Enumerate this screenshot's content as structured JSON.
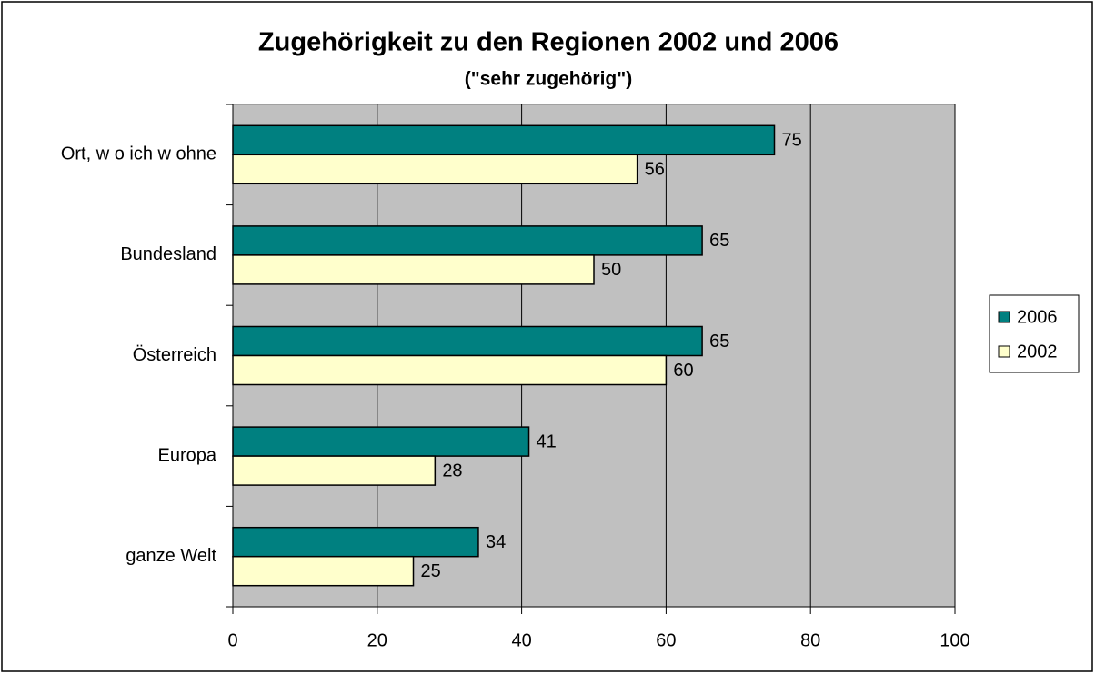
{
  "chart_data": {
    "type": "hbar",
    "title": "Zugehörigkeit zu den Regionen 2002 und 2006",
    "subtitle": "(\"sehr zugehörig\")",
    "categories": [
      "Ort, w o ich w ohne",
      "Bundesland",
      "Österreich",
      "Europa",
      "ganze Welt"
    ],
    "series": [
      {
        "name": "2006",
        "color": "#008080",
        "values": [
          75,
          65,
          65,
          41,
          34
        ]
      },
      {
        "name": "2002",
        "color": "#FFFFCC",
        "values": [
          56,
          50,
          60,
          28,
          25
        ]
      }
    ],
    "xlim": [
      0,
      100
    ],
    "xticks": [
      0,
      20,
      40,
      60,
      80,
      100
    ],
    "grid": true,
    "legend": "right"
  }
}
